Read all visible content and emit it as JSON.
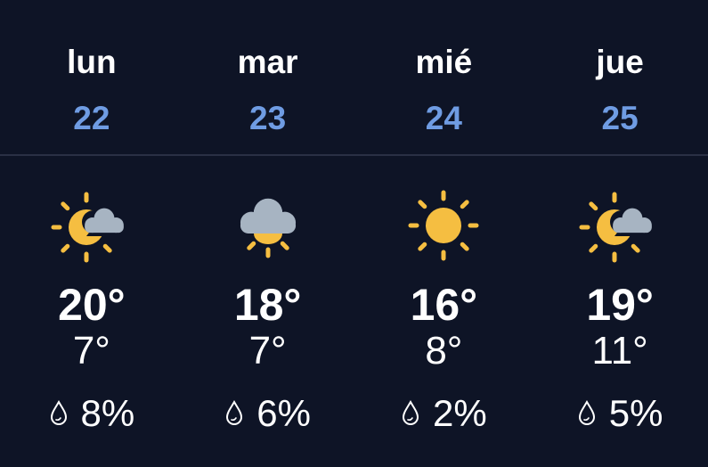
{
  "colors": {
    "background": "#0e1426",
    "date": "#6f9ce3",
    "sun": "#f5be41",
    "cloud": "#a7b4c2"
  },
  "days": [
    {
      "name": "lun",
      "date": "22",
      "icon": "partly-cloudy-icon",
      "high": "20°",
      "low": "7°",
      "precip": "8%"
    },
    {
      "name": "mar",
      "date": "23",
      "icon": "cloudy-sun-below-icon",
      "high": "18°",
      "low": "7°",
      "precip": "6%"
    },
    {
      "name": "mié",
      "date": "24",
      "icon": "sunny-icon",
      "high": "16°",
      "low": "8°",
      "precip": "2%"
    },
    {
      "name": "jue",
      "date": "25",
      "icon": "partly-cloudy-icon",
      "high": "19°",
      "low": "11°",
      "precip": "5%"
    }
  ]
}
